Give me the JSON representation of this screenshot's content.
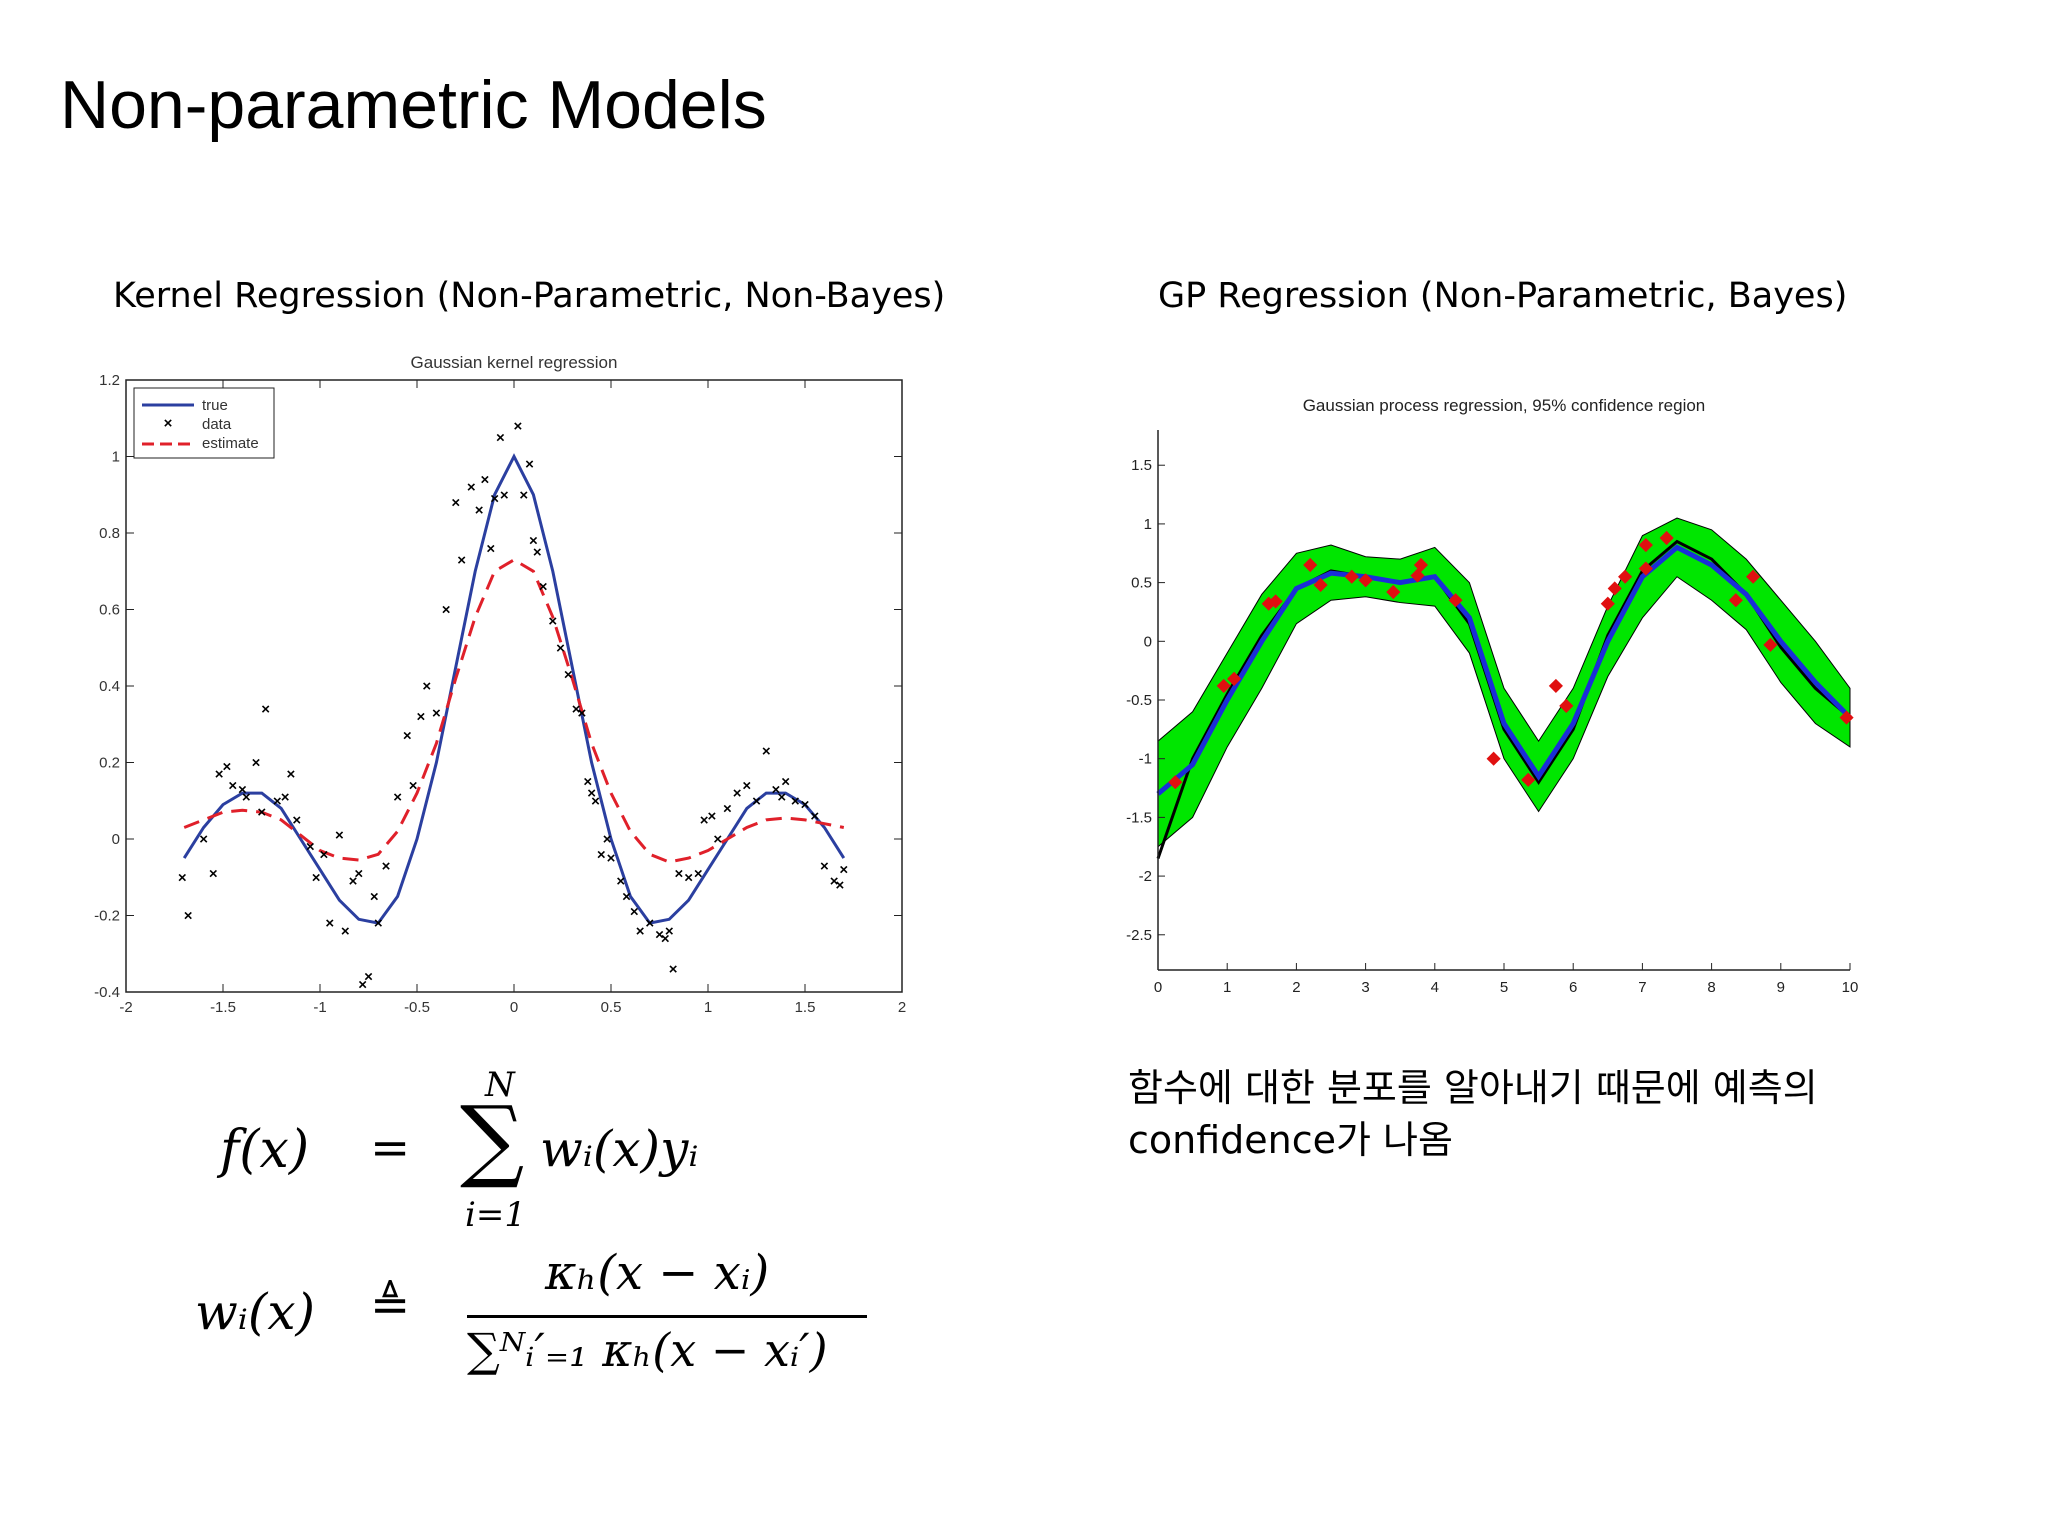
{
  "slide": {
    "title": "Non-parametric Models",
    "left_heading": "Kernel Regression (Non-Parametric, Non-Bayes)",
    "right_heading": "GP Regression (Non-Parametric, Bayes)",
    "korean_line1": "함수에 대한 분포를 알아내기 때문에 예측의",
    "korean_line2": "confidence가 나옴"
  },
  "formula": {
    "f_lhs": "f(x)",
    "eq": "=",
    "sum_top": "N",
    "sum_bottom": "i=1",
    "sum_body": "wᵢ(x)yᵢ",
    "w_lhs": "wᵢ(x)",
    "triangleq": "≜",
    "numerator": "κₕ(x − xᵢ)",
    "denominator": "∑ᴺᵢ′₌₁ κₕ(x − xᵢ′)"
  },
  "chart_data": [
    {
      "type": "line",
      "title": "Gaussian kernel regression",
      "xlim": [
        -2,
        2
      ],
      "ylim": [
        -0.4,
        1.2
      ],
      "xticks": [
        "-2",
        "-1.5",
        "-1",
        "-0.5",
        "0",
        "0.5",
        "1",
        "1.5",
        "2"
      ],
      "yticks": [
        "-0.4",
        "-0.2",
        "0",
        "0.2",
        "0.4",
        "0.6",
        "0.8",
        "1",
        "1.2"
      ],
      "legend": {
        "placement": "top-left",
        "entries": [
          "true",
          "data",
          "estimate"
        ]
      },
      "colors": {
        "true": "#2b3fa0",
        "data": "#000000",
        "estimate": "#e0202a"
      },
      "series": [
        {
          "name": "true",
          "x": [
            -1.7,
            -1.6,
            -1.5,
            -1.4,
            -1.3,
            -1.2,
            -1.1,
            -1.0,
            -0.9,
            -0.8,
            -0.7,
            -0.6,
            -0.5,
            -0.4,
            -0.3,
            -0.2,
            -0.1,
            0.0,
            0.1,
            0.2,
            0.3,
            0.4,
            0.5,
            0.6,
            0.7,
            0.8,
            0.9,
            1.0,
            1.1,
            1.2,
            1.3,
            1.4,
            1.5,
            1.6,
            1.7
          ],
          "y": [
            -0.05,
            0.03,
            0.09,
            0.12,
            0.12,
            0.08,
            0.0,
            -0.08,
            -0.16,
            -0.21,
            -0.22,
            -0.15,
            0.0,
            0.2,
            0.45,
            0.7,
            0.9,
            1.0,
            0.9,
            0.7,
            0.45,
            0.2,
            0.0,
            -0.15,
            -0.22,
            -0.21,
            -0.16,
            -0.08,
            0.0,
            0.08,
            0.12,
            0.12,
            0.09,
            0.03,
            -0.05
          ]
        },
        {
          "name": "estimate",
          "x": [
            -1.7,
            -1.6,
            -1.5,
            -1.4,
            -1.3,
            -1.2,
            -1.1,
            -1.0,
            -0.9,
            -0.8,
            -0.7,
            -0.6,
            -0.5,
            -0.4,
            -0.3,
            -0.2,
            -0.1,
            0.0,
            0.1,
            0.2,
            0.3,
            0.4,
            0.5,
            0.6,
            0.7,
            0.8,
            0.9,
            1.0,
            1.1,
            1.2,
            1.3,
            1.4,
            1.5,
            1.6,
            1.7
          ],
          "y": [
            0.03,
            0.05,
            0.07,
            0.075,
            0.07,
            0.05,
            0.01,
            -0.03,
            -0.05,
            -0.055,
            -0.04,
            0.02,
            0.12,
            0.25,
            0.42,
            0.58,
            0.7,
            0.73,
            0.7,
            0.58,
            0.42,
            0.25,
            0.12,
            0.02,
            -0.04,
            -0.06,
            -0.05,
            -0.03,
            0.0,
            0.03,
            0.05,
            0.055,
            0.05,
            0.04,
            0.03
          ]
        }
      ],
      "points": {
        "name": "data",
        "x": [
          -1.71,
          -1.68,
          -1.6,
          -1.55,
          -1.52,
          -1.48,
          -1.45,
          -1.4,
          -1.38,
          -1.33,
          -1.3,
          -1.28,
          -1.22,
          -1.18,
          -1.15,
          -1.12,
          -1.05,
          -1.02,
          -0.98,
          -0.95,
          -0.9,
          -0.87,
          -0.83,
          -0.8,
          -0.78,
          -0.75,
          -0.72,
          -0.7,
          -0.66,
          -0.6,
          -0.55,
          -0.52,
          -0.48,
          -0.45,
          -0.4,
          -0.35,
          -0.3,
          -0.27,
          -0.22,
          -0.18,
          -0.15,
          -0.12,
          -0.1,
          -0.07,
          -0.05,
          0.02,
          0.05,
          0.08,
          0.1,
          0.12,
          0.15,
          0.2,
          0.24,
          0.28,
          0.32,
          0.35,
          0.38,
          0.4,
          0.42,
          0.45,
          0.48,
          0.5,
          0.55,
          0.58,
          0.62,
          0.65,
          0.7,
          0.75,
          0.78,
          0.8,
          0.82,
          0.85,
          0.9,
          0.95,
          0.98,
          1.02,
          1.05,
          1.1,
          1.15,
          1.2,
          1.25,
          1.3,
          1.35,
          1.38,
          1.4,
          1.45,
          1.5,
          1.55,
          1.6,
          1.65,
          1.68,
          1.7
        ],
        "y": [
          -0.1,
          -0.2,
          0.0,
          -0.09,
          0.17,
          0.19,
          0.14,
          0.13,
          0.11,
          0.2,
          0.07,
          0.34,
          0.1,
          0.11,
          0.17,
          0.05,
          -0.02,
          -0.1,
          -0.04,
          -0.22,
          0.01,
          -0.24,
          -0.11,
          -0.09,
          -0.38,
          -0.36,
          -0.15,
          -0.22,
          -0.07,
          0.11,
          0.27,
          0.14,
          0.32,
          0.4,
          0.33,
          0.6,
          0.88,
          0.73,
          0.92,
          0.86,
          0.94,
          0.76,
          0.89,
          1.05,
          0.9,
          1.08,
          0.9,
          0.98,
          0.78,
          0.75,
          0.66,
          0.57,
          0.5,
          0.43,
          0.34,
          0.33,
          0.15,
          0.12,
          0.1,
          -0.04,
          0.0,
          -0.05,
          -0.11,
          -0.15,
          -0.19,
          -0.24,
          -0.22,
          -0.25,
          -0.26,
          -0.24,
          -0.34,
          -0.09,
          -0.1,
          -0.09,
          0.05,
          0.06,
          0.0,
          0.08,
          0.12,
          0.14,
          0.1,
          0.23,
          0.13,
          0.11,
          0.15,
          0.1,
          0.09,
          0.06,
          -0.07,
          -0.11,
          -0.12,
          -0.08
        ]
      }
    },
    {
      "type": "line",
      "title": "Gaussian process regression, 95% confidence region",
      "xlim": [
        0,
        10
      ],
      "ylim": [
        -2.8,
        1.8
      ],
      "xticks": [
        "0",
        "1",
        "2",
        "3",
        "4",
        "5",
        "6",
        "7",
        "8",
        "9",
        "10"
      ],
      "yticks": [
        "-2.5",
        "-2",
        "-1.5",
        "-1",
        "-0.5",
        "0",
        "0.5",
        "1",
        "1.5"
      ],
      "colors": {
        "band": "#00e600",
        "mean": "#1a2ed8",
        "true": "#000000",
        "data": "#e01010"
      },
      "x": [
        0,
        0.5,
        1,
        1.5,
        2,
        2.5,
        3,
        3.5,
        4,
        4.5,
        5,
        5.5,
        6,
        6.5,
        7,
        7.5,
        8,
        8.5,
        9,
        9.5,
        10
      ],
      "series": [
        {
          "y": [
            -1.3,
            -1.05,
            -0.5,
            0.0,
            0.45,
            0.58,
            0.55,
            0.5,
            0.55,
            0.2,
            -0.7,
            -1.15,
            -0.7,
            0.0,
            0.55,
            0.8,
            0.65,
            0.4,
            0.0,
            -0.35,
            -0.65
          ]
        },
        {
          "y": [
            -1.85,
            -1.0,
            -0.45,
            0.05,
            0.45,
            0.6,
            0.55,
            0.5,
            0.55,
            0.15,
            -0.75,
            -1.2,
            -0.75,
            0.05,
            0.6,
            0.85,
            0.7,
            0.4,
            -0.05,
            -0.4,
            -0.65
          ]
        }
      ],
      "band_upper": [
        -0.85,
        -0.6,
        -0.1,
        0.4,
        0.75,
        0.82,
        0.72,
        0.7,
        0.8,
        0.5,
        -0.4,
        -0.85,
        -0.4,
        0.3,
        0.9,
        1.05,
        0.95,
        0.7,
        0.35,
        0.0,
        -0.4
      ],
      "band_lower": [
        -1.75,
        -1.5,
        -0.9,
        -0.4,
        0.15,
        0.35,
        0.38,
        0.33,
        0.3,
        -0.1,
        -1.0,
        -1.45,
        -1.0,
        -0.3,
        0.2,
        0.55,
        0.35,
        0.1,
        -0.35,
        -0.7,
        -0.9
      ],
      "points": {
        "x": [
          0.25,
          0.95,
          1.1,
          1.6,
          1.7,
          2.2,
          2.35,
          2.8,
          3.0,
          3.4,
          3.75,
          3.8,
          4.3,
          4.85,
          5.35,
          5.75,
          5.9,
          6.5,
          6.6,
          6.75,
          7.05,
          7.05,
          7.35,
          8.35,
          8.6,
          8.85,
          9.95
        ],
        "y": [
          -1.2,
          -0.38,
          -0.32,
          0.32,
          0.34,
          0.65,
          0.48,
          0.55,
          0.52,
          0.42,
          0.56,
          0.65,
          0.35,
          -1.0,
          -1.18,
          -0.38,
          -0.55,
          0.32,
          0.45,
          0.55,
          0.62,
          0.82,
          0.88,
          0.35,
          0.55,
          -0.03,
          -0.65
        ]
      }
    }
  ]
}
